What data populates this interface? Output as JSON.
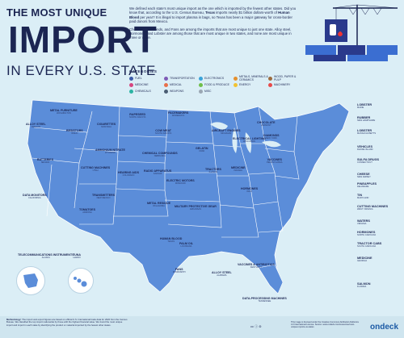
{
  "header": {
    "line1": "THE MOST UNIQUE",
    "line2": "IMPORT",
    "line3": "IN EVERY U.S. STATE"
  },
  "intro": {
    "p1_a": "We defined each state's most unique import as the one which is imported by the fewest other states. Did you know that, according to the U.S. Census Bureau, ",
    "p1_texas": "Texas",
    "p1_b": " imports nearly $1 billion dollars-worth of ",
    "p1_blood": "Human Blood",
    "p1_c": " per year? It is illegal to import plasma in bags, so Texas has been a major gateway for cross-border paid donors from Mexico.",
    "p2": "Chocolate, Diamonds, and Fans are among the imports that are most unique to just one state. Alloy steel, Hormones, and Lobster are among those that are most unique in two states, and none are most unique in three or more."
  },
  "categories": {
    "title": "CATEGORIES",
    "items": [
      {
        "label": "FUEL",
        "color": "#3b5ba9"
      },
      {
        "label": "TRANSPORTATION",
        "color": "#7d5bb6"
      },
      {
        "label": "ELECTRONICS",
        "color": "#3aa3d9"
      },
      {
        "label": "METALS, MINERALS & CERAMICS",
        "color": "#e4902f"
      },
      {
        "label": "WOOD, PAPER & PULP",
        "color": "#9c6b3e"
      },
      {
        "label": "MEDICINE",
        "color": "#d6457f"
      },
      {
        "label": "MEDICAL",
        "color": "#e8704a"
      },
      {
        "label": "FOOD & PRODUCE",
        "color": "#6fbf4a"
      },
      {
        "label": "ENERGY",
        "color": "#f2c230"
      },
      {
        "label": "MACHINERY",
        "color": "#e84a4a"
      },
      {
        "label": "CHEMICALS",
        "color": "#2bb3a3"
      },
      {
        "label": "WEAPONS",
        "color": "#4a5d73"
      },
      {
        "label": "MISC",
        "color": "#9aa7b3"
      }
    ]
  },
  "map_labels": [
    {
      "item": "METAL FURNITURE",
      "state": "WASHINGTON"
    },
    {
      "item": "RAPESEED",
      "state": "NORTH DAKOTA"
    },
    {
      "item": "PACEMAKERS",
      "state": "MINNESOTA"
    },
    {
      "item": "ALLOY STEEL",
      "state": "OREGON"
    },
    {
      "item": "RESISTORS",
      "state": "IDAHO"
    },
    {
      "item": "CIGARETTES",
      "state": "MONTANA"
    },
    {
      "item": "COW MEAT",
      "state": "SOUTH DAKOTA"
    },
    {
      "item": "AMMONIUM NITRATE",
      "state": "WYOMING"
    },
    {
      "item": "CHEMICAL COMPOUNDS",
      "state": "NEBRASKA"
    },
    {
      "item": "AIRCRAFT ENGINES",
      "state": "MICHIGAN"
    },
    {
      "item": "ELECTRICAL LIGHTING",
      "state": "WISCONSIN"
    },
    {
      "item": "GELATIN",
      "state": "IOWA"
    },
    {
      "item": "BATTERIES",
      "state": "NEVADA"
    },
    {
      "item": "CUTTING MACHINES",
      "state": "UTAH"
    },
    {
      "item": "RADIO APPARATUS",
      "state": "KANSAS"
    },
    {
      "item": "HEARING AIDS",
      "state": "COLORADO"
    },
    {
      "item": "TRACTORS",
      "state": "ILLINOIS"
    },
    {
      "item": "MEDICINE",
      "state": "INDIANA"
    },
    {
      "item": "DIAMONDS",
      "state": "NEW YORK"
    },
    {
      "item": "CHOCOLATE",
      "state": "VERMONT"
    },
    {
      "item": "VACCINES",
      "state": "PENNSYLVANIA"
    },
    {
      "item": "HORMONES",
      "state": "OHIO"
    },
    {
      "item": "ELECTRIC MOTORS",
      "state": "MISSOURI"
    },
    {
      "item": "DATA MONITORS",
      "state": "CALIFORNIA"
    },
    {
      "item": "TRANSMITTERS",
      "state": "NEW MEXICO"
    },
    {
      "item": "TOMATOES",
      "state": "ARIZONA"
    },
    {
      "item": "METAL RESIDUE",
      "state": "OKLAHOMA"
    },
    {
      "item": "MILITARY PROTECTIVE GEAR",
      "state": "ARKANSAS"
    },
    {
      "item": "HUMAN BLOOD",
      "state": "TEXAS"
    },
    {
      "item": "PALM OIL",
      "state": "LOUISIANA"
    },
    {
      "item": "FANS",
      "state": "MISSISSIPPI"
    },
    {
      "item": "ALLOY STEEL",
      "state": "ALABAMA"
    },
    {
      "item": "VACCINES & ANTIBIOTICS",
      "state": "KENTUCKY"
    },
    {
      "item": "DATA-PROCESSING MACHINES",
      "state": "TENNESSEE"
    },
    {
      "item": "TELECOMMUNICATIONS INSTRUMENTS",
      "state": "ALASKA"
    },
    {
      "item": "TUNA",
      "state": "HAWAII"
    }
  ],
  "right_labels": [
    {
      "item": "LOBSTER",
      "state": "MAINE"
    },
    {
      "item": "RUBBER",
      "state": "NEW HAMPSHIRE"
    },
    {
      "item": "LOBSTER",
      "state": "MASSACHUSETTS"
    },
    {
      "item": "VEHICLES",
      "state": "RHODE ISLAND"
    },
    {
      "item": "SULFA DRUGS",
      "state": "CONNECTICUT"
    },
    {
      "item": "CHEESE",
      "state": "NEW JERSEY"
    },
    {
      "item": "PINEAPPLES",
      "state": "DELAWARE"
    },
    {
      "item": "TIN",
      "state": "MARYLAND"
    },
    {
      "item": "CUTTING MACHINES",
      "state": "WEST VIRGINIA"
    },
    {
      "item": "WATERS",
      "state": "VIRGINIA"
    },
    {
      "item": "HORMONES",
      "state": "NORTH CAROLINA"
    },
    {
      "item": "TRACTOR CABS",
      "state": "SOUTH CAROLINA"
    },
    {
      "item": "MEDICINE",
      "state": "GEORGIA"
    },
    {
      "item": "SALMON",
      "state": "FLORIDA"
    }
  ],
  "footer": {
    "methodology_title": "Methodology:",
    "methodology": "The import and export figures are based on official U.S. International trade data for 2020 from the Census Bureau. We classified the top import nationwide by those with the highest financial value. We found the most unique import and import in each state by identifying the product or material imported by the fewest other states.",
    "license": "cc ⓘ ⊜",
    "source": "This image is licensed under the Creative Commons Attribution-NoDerivs 4.0 International License. Source: www.ondeck.com/resources/most-unique-imports-us-states",
    "logo": "ondeck"
  },
  "colors": {
    "title": "#1b2552",
    "ocean": "#dbeef6",
    "land": "#5b8dd9"
  }
}
